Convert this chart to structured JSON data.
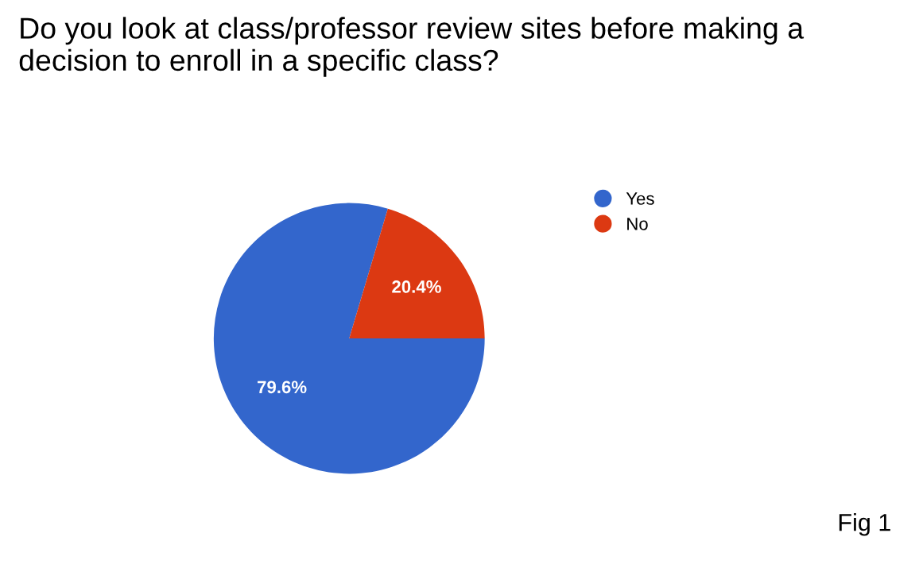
{
  "chart_data": {
    "type": "pie",
    "title": "Do you look at class/professor review sites before making a decision to enroll in a specific class?",
    "categories": [
      "Yes",
      "No"
    ],
    "values": [
      79.6,
      20.4
    ],
    "colors": [
      "#3366cc",
      "#dc3912"
    ],
    "value_labels": [
      "79.6%",
      "20.4%"
    ],
    "legend": "right",
    "annotations": [
      "Fig 1"
    ]
  }
}
